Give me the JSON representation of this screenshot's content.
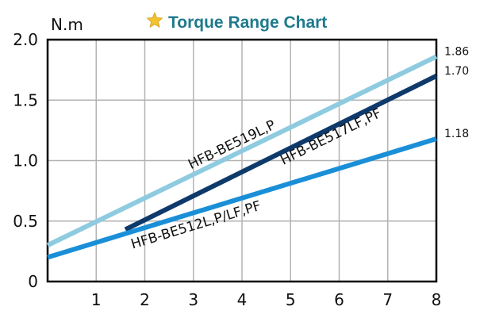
{
  "chart_data": {
    "type": "line",
    "title": "Torque Range Chart",
    "ylabel": "N.m",
    "xlabel": "",
    "xlim": [
      0,
      8
    ],
    "ylim": [
      0,
      2.0
    ],
    "x_ticks": [
      "1",
      "2",
      "3",
      "4",
      "5",
      "6",
      "7",
      "8"
    ],
    "y_ticks": [
      "0",
      "0.5",
      "1.0",
      "1.5",
      "2.0"
    ],
    "grid": true,
    "series": [
      {
        "name": "HFB-BE519L,P",
        "x": [
          0,
          8
        ],
        "y": [
          0.3,
          1.86
        ],
        "end_label": "1.86",
        "color": "#8ecbe0"
      },
      {
        "name": "HFB-BE517LF,PF",
        "x": [
          1.6,
          8
        ],
        "y": [
          0.43,
          1.7
        ],
        "end_label": "1.70",
        "color": "#0e3a6b"
      },
      {
        "name": "HFB-BE512L,P/LF,PF",
        "x": [
          0,
          8
        ],
        "y": [
          0.2,
          1.18
        ],
        "end_label": "1.18",
        "color": "#1a8fd8"
      }
    ],
    "colors": {
      "title": "#1e7a8c",
      "star": "#f2c230",
      "grid": "#b3b3b3",
      "frame": "#000000"
    }
  }
}
